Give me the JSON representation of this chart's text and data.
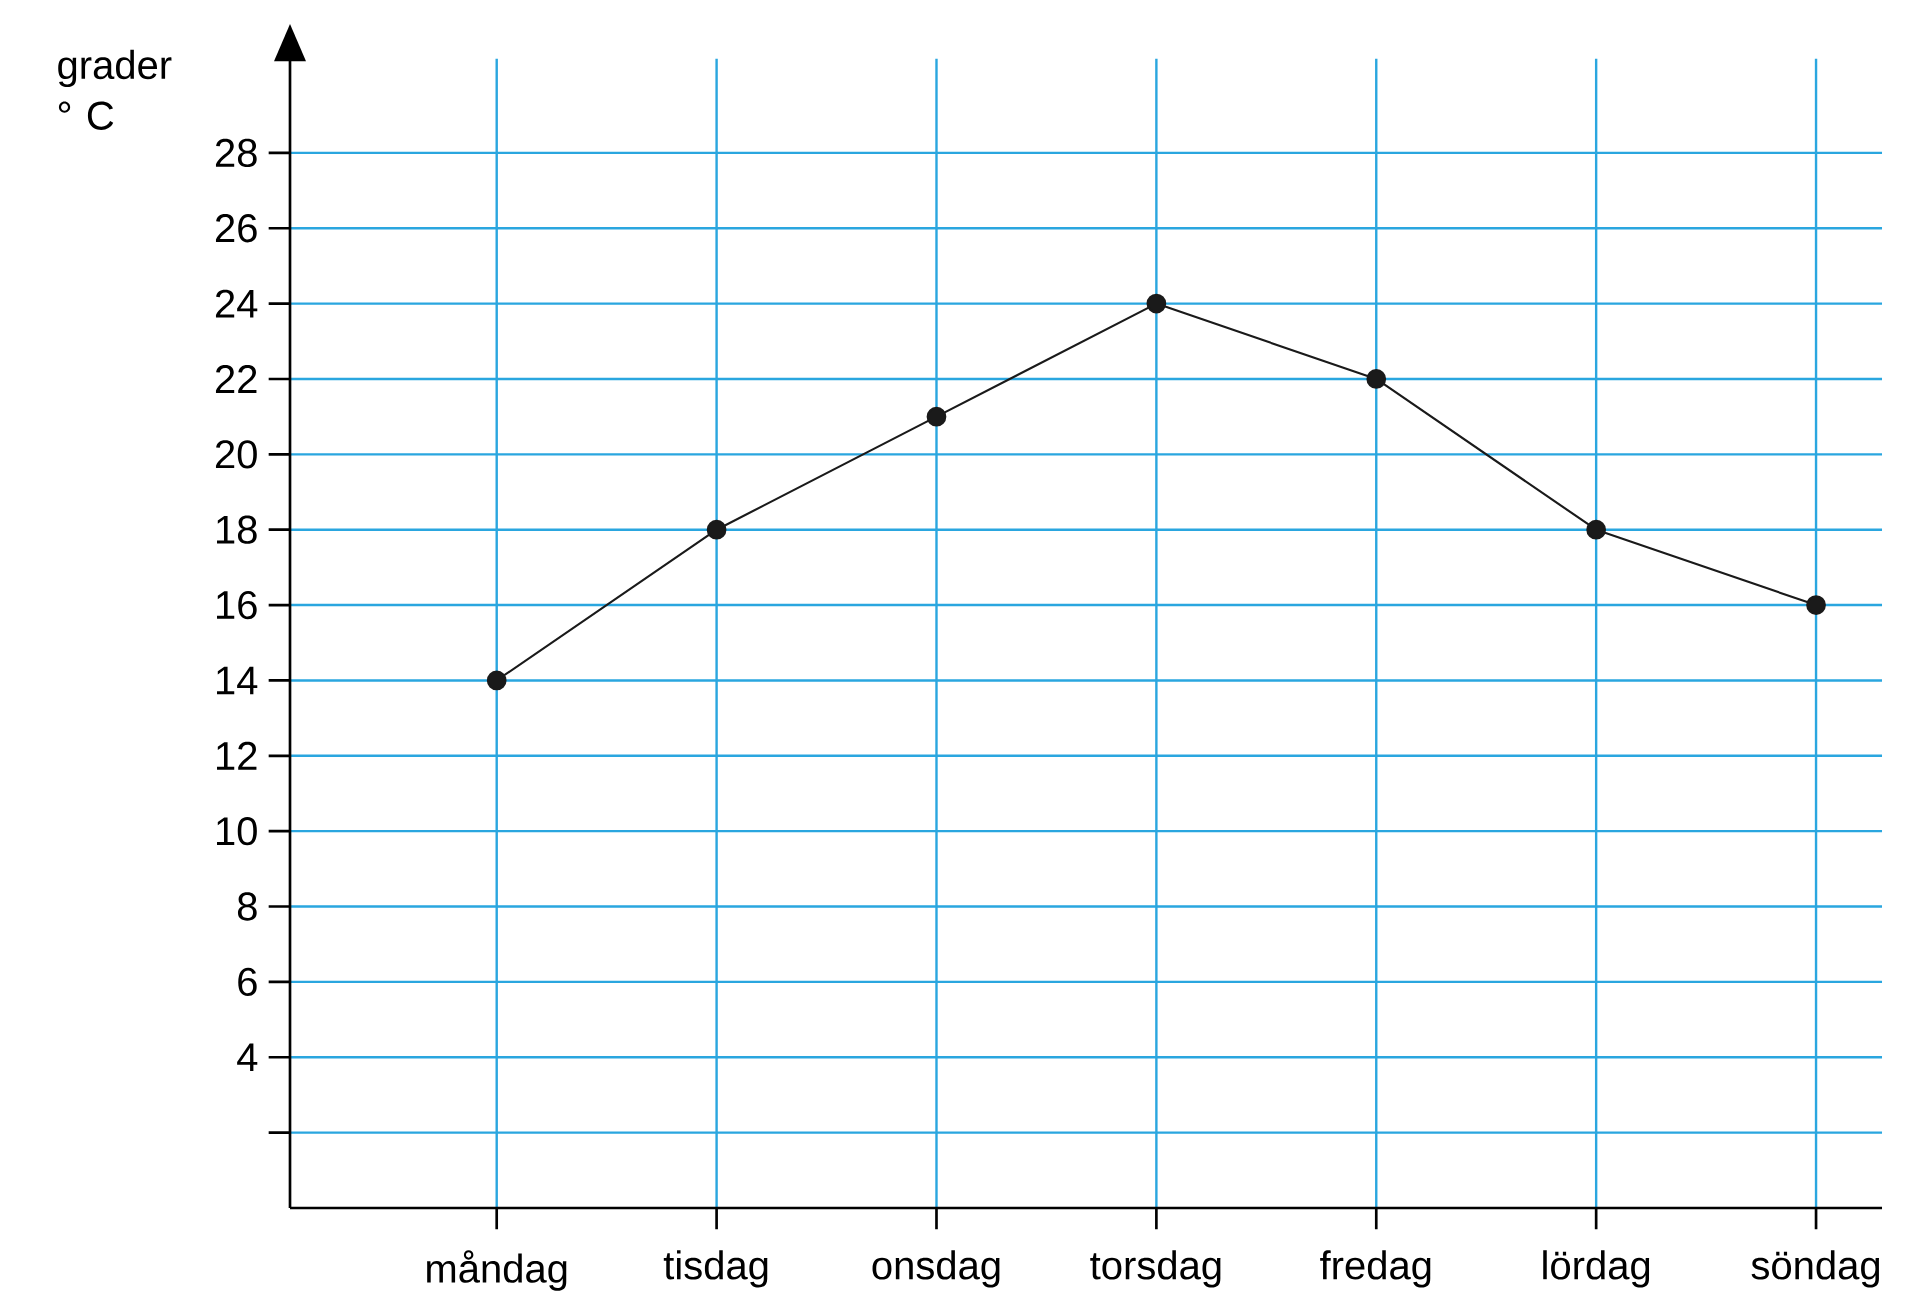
{
  "chart_data": {
    "type": "line",
    "ylabel": "grader ° C",
    "categories": [
      "måndag",
      "tisdag",
      "onsdag",
      "torsdag",
      "fredag",
      "lördag",
      "söndag"
    ],
    "values": [
      14,
      18,
      21,
      24,
      22,
      18,
      16
    ],
    "color": "#1a1a1a",
    "ylim": [
      0,
      30.5
    ],
    "yticks": [
      {
        "value": 2,
        "label": null
      },
      4,
      6,
      8,
      10,
      12,
      14,
      16,
      18,
      20,
      22,
      24,
      26,
      28
    ],
    "grid": true,
    "marker": "circle",
    "line_style": "solid"
  }
}
